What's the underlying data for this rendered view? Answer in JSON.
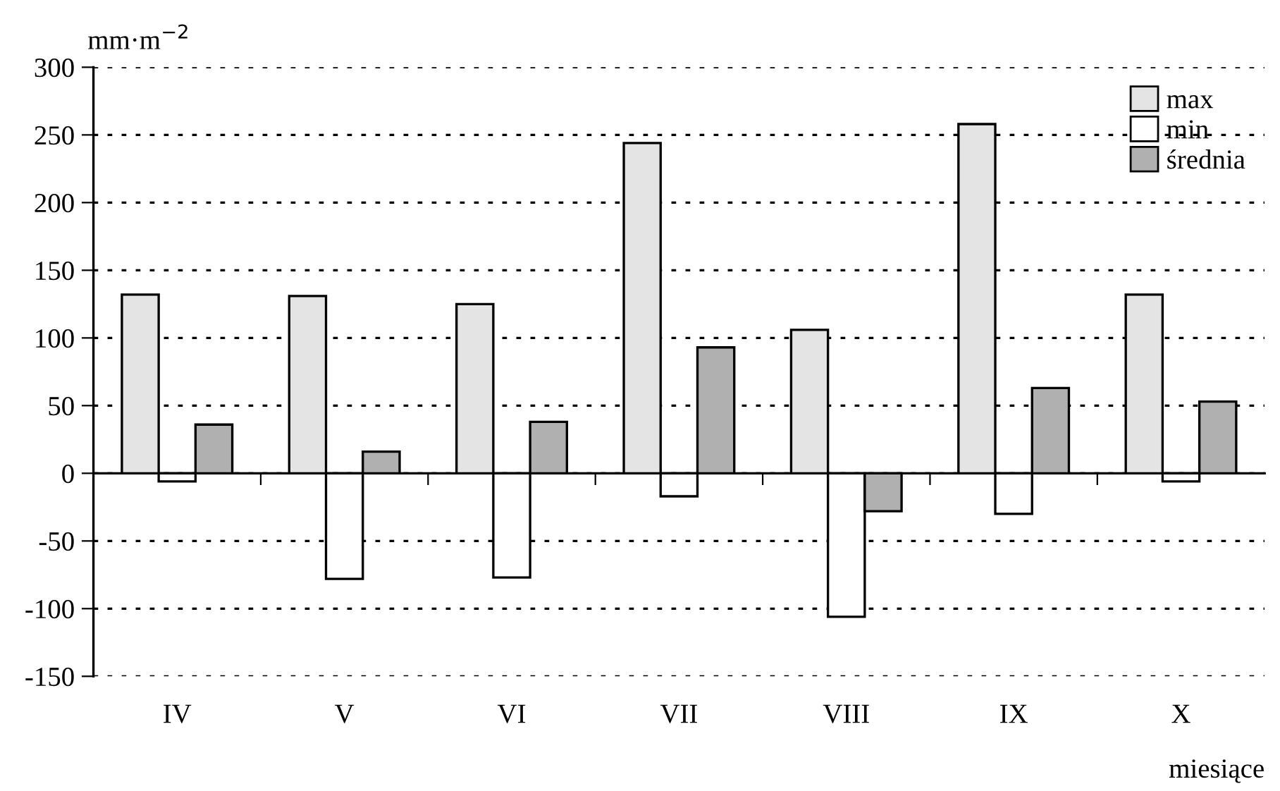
{
  "chart_data": {
    "type": "bar",
    "ylabel": "mm·m$^{−2}$",
    "xlabel": "miesiące",
    "categories": [
      "IV",
      "V",
      "VI",
      "VII",
      "VIII",
      "IX",
      "X"
    ],
    "series": [
      {
        "name": "max",
        "color": "#e4e4e4",
        "values": [
          132,
          131,
          125,
          244,
          106,
          258,
          132
        ]
      },
      {
        "name": "min",
        "color": "#ffffff",
        "values": [
          -6,
          -78,
          -77,
          -17,
          -106,
          -30,
          -6
        ]
      },
      {
        "name": "średnia",
        "color": "#b0b0b0",
        "values": [
          36,
          16,
          38,
          93,
          -28,
          63,
          53
        ]
      }
    ],
    "ylim": [
      -150,
      300
    ],
    "yticks": [
      -150,
      -100,
      -50,
      0,
      50,
      100,
      150,
      200,
      250,
      300
    ],
    "grid": "y",
    "legend": "top right"
  }
}
